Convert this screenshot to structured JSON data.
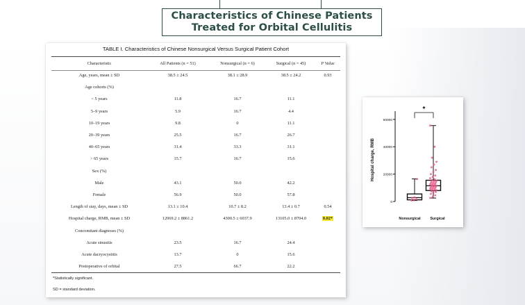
{
  "slide_title": {
    "line1": "Characteristics of Chinese Patients",
    "line2": "Treated for Orbital Cellulitis"
  },
  "table": {
    "caption": "TABLE I. Characteristics of Chinese Nonsurgical Versus Surgical Patient Cohort",
    "headers": [
      "Characteristic",
      "All Patients (n = 51)",
      "Nonsurgical (n = 6)",
      "Surgical (n = 45)",
      "P Value"
    ],
    "rows": [
      [
        "Age, years, mean ± SD",
        "38.5 ± 24.5",
        "38.1 ± 28.9",
        "38.5 ± 24.2",
        "0.93"
      ],
      [
        "Age cohorts (%)",
        "",
        "",
        "",
        ""
      ],
      [
        "< 5 years",
        "11.8",
        "16.7",
        "11.1",
        ""
      ],
      [
        "5–9 years",
        "5.9",
        "16.7",
        "4.4",
        ""
      ],
      [
        "10–19 years",
        "9.8",
        "0",
        "11.1",
        ""
      ],
      [
        "20–39 years",
        "25.5",
        "16.7",
        "26.7",
        ""
      ],
      [
        "40–65 years",
        "31.4",
        "33.3",
        "31.1",
        ""
      ],
      [
        "> 65 years",
        "15.7",
        "16.7",
        "15.6",
        ""
      ],
      [
        "Sex (%)",
        "",
        "",
        "",
        ""
      ],
      [
        "Male",
        "43.1",
        "50.0",
        "42.2",
        ""
      ],
      [
        "Female",
        "56.9",
        "50.0",
        "57.8",
        ""
      ],
      [
        "Length of stay, days, mean ± SD",
        "13.1 ± 10.4",
        "10.7 ± 8.2",
        "13.4 ± 0.7",
        "0.54"
      ],
      [
        "Hospital charge, RMB, mean ± SD",
        "12069.2 ± 8861.2",
        "4300.5 ± 6037.9",
        "13105.0 ± 8704.0",
        "0.02*"
      ],
      [
        "Concomitant diagnoses (%)",
        "",
        "",
        "",
        ""
      ],
      [
        "Acute sinusitis",
        "23.5",
        "16.7",
        "24.4",
        ""
      ],
      [
        "Acute dacryocystitis",
        "13.7",
        "0",
        "15.6",
        ""
      ],
      [
        "Postoperative of orbital",
        "27.5",
        "66.7",
        "22.2",
        ""
      ]
    ],
    "highlight_color": "#f5ea2a",
    "footnotes": [
      "*Statistically significant.",
      "SD = standard deviation."
    ]
  },
  "chart_data": {
    "type": "box",
    "ylabel": "Hospital charge, RMB",
    "xlabel": "",
    "title": "",
    "ylim": [
      0,
      65000
    ],
    "yticks": [
      0,
      20000,
      40000,
      60000
    ],
    "categories": [
      "Nonsurgical",
      "Surgical"
    ],
    "significance_marker": "*",
    "boxes": [
      {
        "name": "Nonsurgical",
        "min": 700,
        "q1": 1200,
        "median": 2800,
        "q3": 5500,
        "max": 16500
      },
      {
        "name": "Surgical",
        "min": 2500,
        "q1": 8000,
        "median": 11500,
        "q3": 15500,
        "max": 55500
      }
    ],
    "points": {
      "Nonsurgical": [
        800,
        1100,
        1500,
        2600,
        3000,
        16400
      ],
      "Surgical": [
        2600,
        3500,
        4500,
        5500,
        6200,
        7000,
        7400,
        7900,
        8300,
        8700,
        9000,
        9300,
        9600,
        9900,
        10200,
        10500,
        10800,
        11000,
        11300,
        11600,
        11900,
        12200,
        12500,
        12800,
        13100,
        13400,
        13700,
        14000,
        14400,
        14800,
        15200,
        15600,
        16200,
        17000,
        18000,
        19000,
        20000,
        21500,
        23000,
        25000,
        27000,
        29000,
        32000,
        40000,
        55500
      ]
    },
    "colors": {
      "box": "#111111",
      "point": "#e8548a"
    }
  }
}
